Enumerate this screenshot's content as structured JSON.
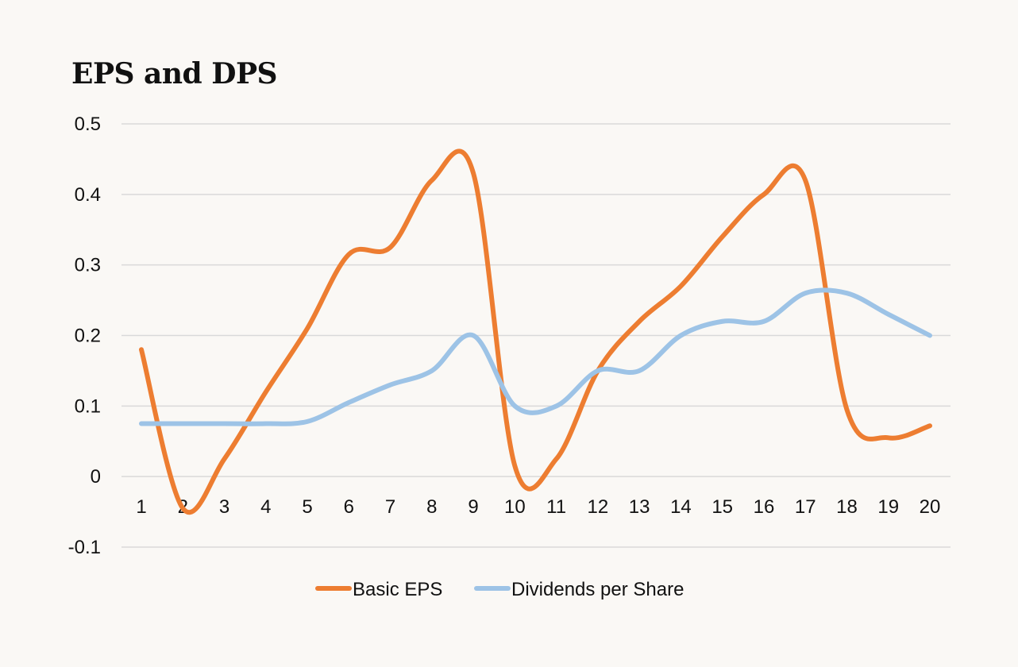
{
  "chart_data": {
    "type": "line",
    "title": "EPS and DPS",
    "xlabel": "",
    "ylabel": "",
    "categories": [
      "1",
      "2",
      "3",
      "4",
      "5",
      "6",
      "7",
      "8",
      "9",
      "10",
      "11",
      "12",
      "13",
      "14",
      "15",
      "16",
      "17",
      "18",
      "19",
      "20"
    ],
    "ylim": [
      -0.1,
      0.5
    ],
    "yticks": [
      "0.5",
      "0.4",
      "0.3",
      "0.2",
      "0.1",
      "0",
      "-0.1"
    ],
    "ytick_values": [
      0.5,
      0.4,
      0.3,
      0.2,
      0.1,
      0,
      -0.1
    ],
    "grid": true,
    "legend_position": "bottom",
    "smooth": true,
    "series": [
      {
        "name": "Basic EPS",
        "color": "#ed7d31",
        "values": [
          0.18,
          -0.045,
          0.025,
          0.12,
          0.21,
          0.315,
          0.325,
          0.42,
          0.43,
          0.015,
          0.025,
          0.15,
          0.22,
          0.27,
          0.34,
          0.4,
          0.42,
          0.095,
          0.055,
          0.072
        ]
      },
      {
        "name": "Dividends per Share",
        "color": "#9dc3e6",
        "values": [
          0.075,
          0.075,
          0.075,
          0.075,
          0.078,
          0.105,
          0.13,
          0.15,
          0.2,
          0.1,
          0.1,
          0.15,
          0.15,
          0.2,
          0.22,
          0.22,
          0.26,
          0.26,
          0.23,
          0.2
        ]
      }
    ]
  }
}
